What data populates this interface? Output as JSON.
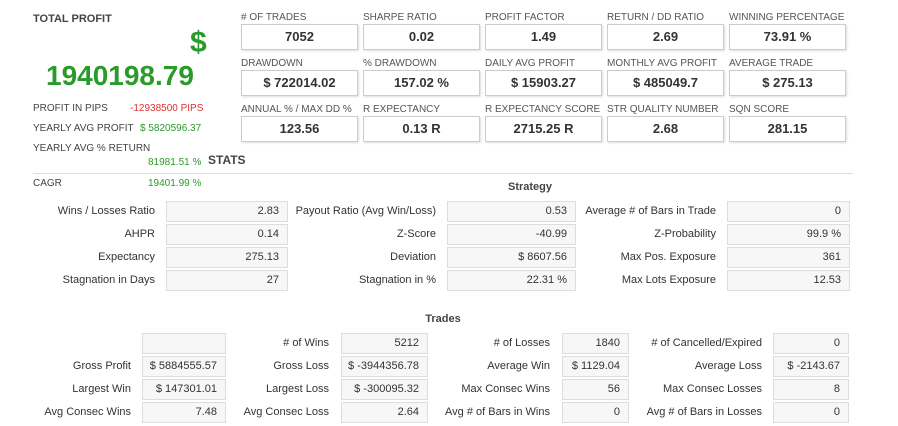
{
  "total_profit": {
    "label": "TOTAL PROFIT",
    "currency": "$",
    "value": "1940198.79"
  },
  "left_stats": [
    {
      "label": "PROFIT IN PIPS",
      "value": "-12938500 PIPS"
    },
    {
      "label": "YEARLY AVG PROFIT",
      "value": "$ 5820596.37"
    },
    {
      "label": "YEARLY AVG % RETURN",
      "value": "81981.51 %"
    },
    {
      "label": "CAGR",
      "value": "19401.99 %"
    }
  ],
  "stats_title": "STATS",
  "metrics": [
    {
      "label": "# OF TRADES",
      "value": "7052"
    },
    {
      "label": "SHARPE RATIO",
      "value": "0.02"
    },
    {
      "label": "PROFIT FACTOR",
      "value": "1.49"
    },
    {
      "label": "RETURN / DD RATIO",
      "value": "2.69"
    },
    {
      "label": "WINNING PERCENTAGE",
      "value": "73.91 %"
    },
    {
      "label": "DRAWDOWN",
      "value": "$ 722014.02"
    },
    {
      "label": "% DRAWDOWN",
      "value": "157.02 %"
    },
    {
      "label": "DAILY AVG PROFIT",
      "value": "$ 15903.27"
    },
    {
      "label": "MONTHLY AVG PROFIT",
      "value": "$ 485049.7"
    },
    {
      "label": "AVERAGE TRADE",
      "value": "$ 275.13"
    },
    {
      "label": "ANNUAL % / MAX DD %",
      "value": "123.56"
    },
    {
      "label": "R EXPECTANCY",
      "value": "0.13 R"
    },
    {
      "label": "R EXPECTANCY SCORE",
      "value": "2715.25 R"
    },
    {
      "label": "STR QUALITY NUMBER",
      "value": "2.68"
    },
    {
      "label": "SQN SCORE",
      "value": "281.15"
    }
  ],
  "strategy": {
    "title": "Strategy",
    "rows": [
      [
        {
          "label": "Wins / Losses Ratio",
          "value": "2.83"
        },
        {
          "label": "Payout Ratio (Avg Win/Loss)",
          "value": "0.53"
        },
        {
          "label": "Average # of Bars in Trade",
          "value": "0"
        }
      ],
      [
        {
          "label": "AHPR",
          "value": "0.14"
        },
        {
          "label": "Z-Score",
          "value": "-40.99"
        },
        {
          "label": "Z-Probability",
          "value": "99.9 %"
        }
      ],
      [
        {
          "label": "Expectancy",
          "value": "275.13"
        },
        {
          "label": "Deviation",
          "value": "$ 8607.56"
        },
        {
          "label": "Max Pos. Exposure",
          "value": "361"
        }
      ],
      [
        {
          "label": "Stagnation in Days",
          "value": "27"
        },
        {
          "label": "Stagnation in %",
          "value": "22.31 %"
        },
        {
          "label": "Max Lots Exposure",
          "value": "12.53"
        }
      ]
    ]
  },
  "trades": {
    "title": "Trades",
    "rows": [
      [
        null,
        {
          "label": "# of Wins",
          "value": "5212"
        },
        {
          "label": "# of Losses",
          "value": "1840"
        },
        {
          "label": "# of Cancelled/Expired",
          "value": "0"
        }
      ],
      [
        {
          "label": "Gross Profit",
          "value": "$ 5884555.57"
        },
        {
          "label": "Gross Loss",
          "value": "$ -3944356.78"
        },
        {
          "label": "Average Win",
          "value": "$ 1129.04"
        },
        {
          "label": "Average Loss",
          "value": "$ -2143.67"
        }
      ],
      [
        {
          "label": "Largest Win",
          "value": "$ 147301.01"
        },
        {
          "label": "Largest Loss",
          "value": "$ -300095.32"
        },
        {
          "label": "Max Consec Wins",
          "value": "56"
        },
        {
          "label": "Max Consec Losses",
          "value": "8"
        }
      ],
      [
        {
          "label": "Avg Consec Wins",
          "value": "7.48"
        },
        {
          "label": "Avg Consec Loss",
          "value": "2.64"
        },
        {
          "label": "Avg # of Bars in Wins",
          "value": "0"
        },
        {
          "label": "Avg # of Bars in Losses",
          "value": "0"
        }
      ]
    ]
  }
}
